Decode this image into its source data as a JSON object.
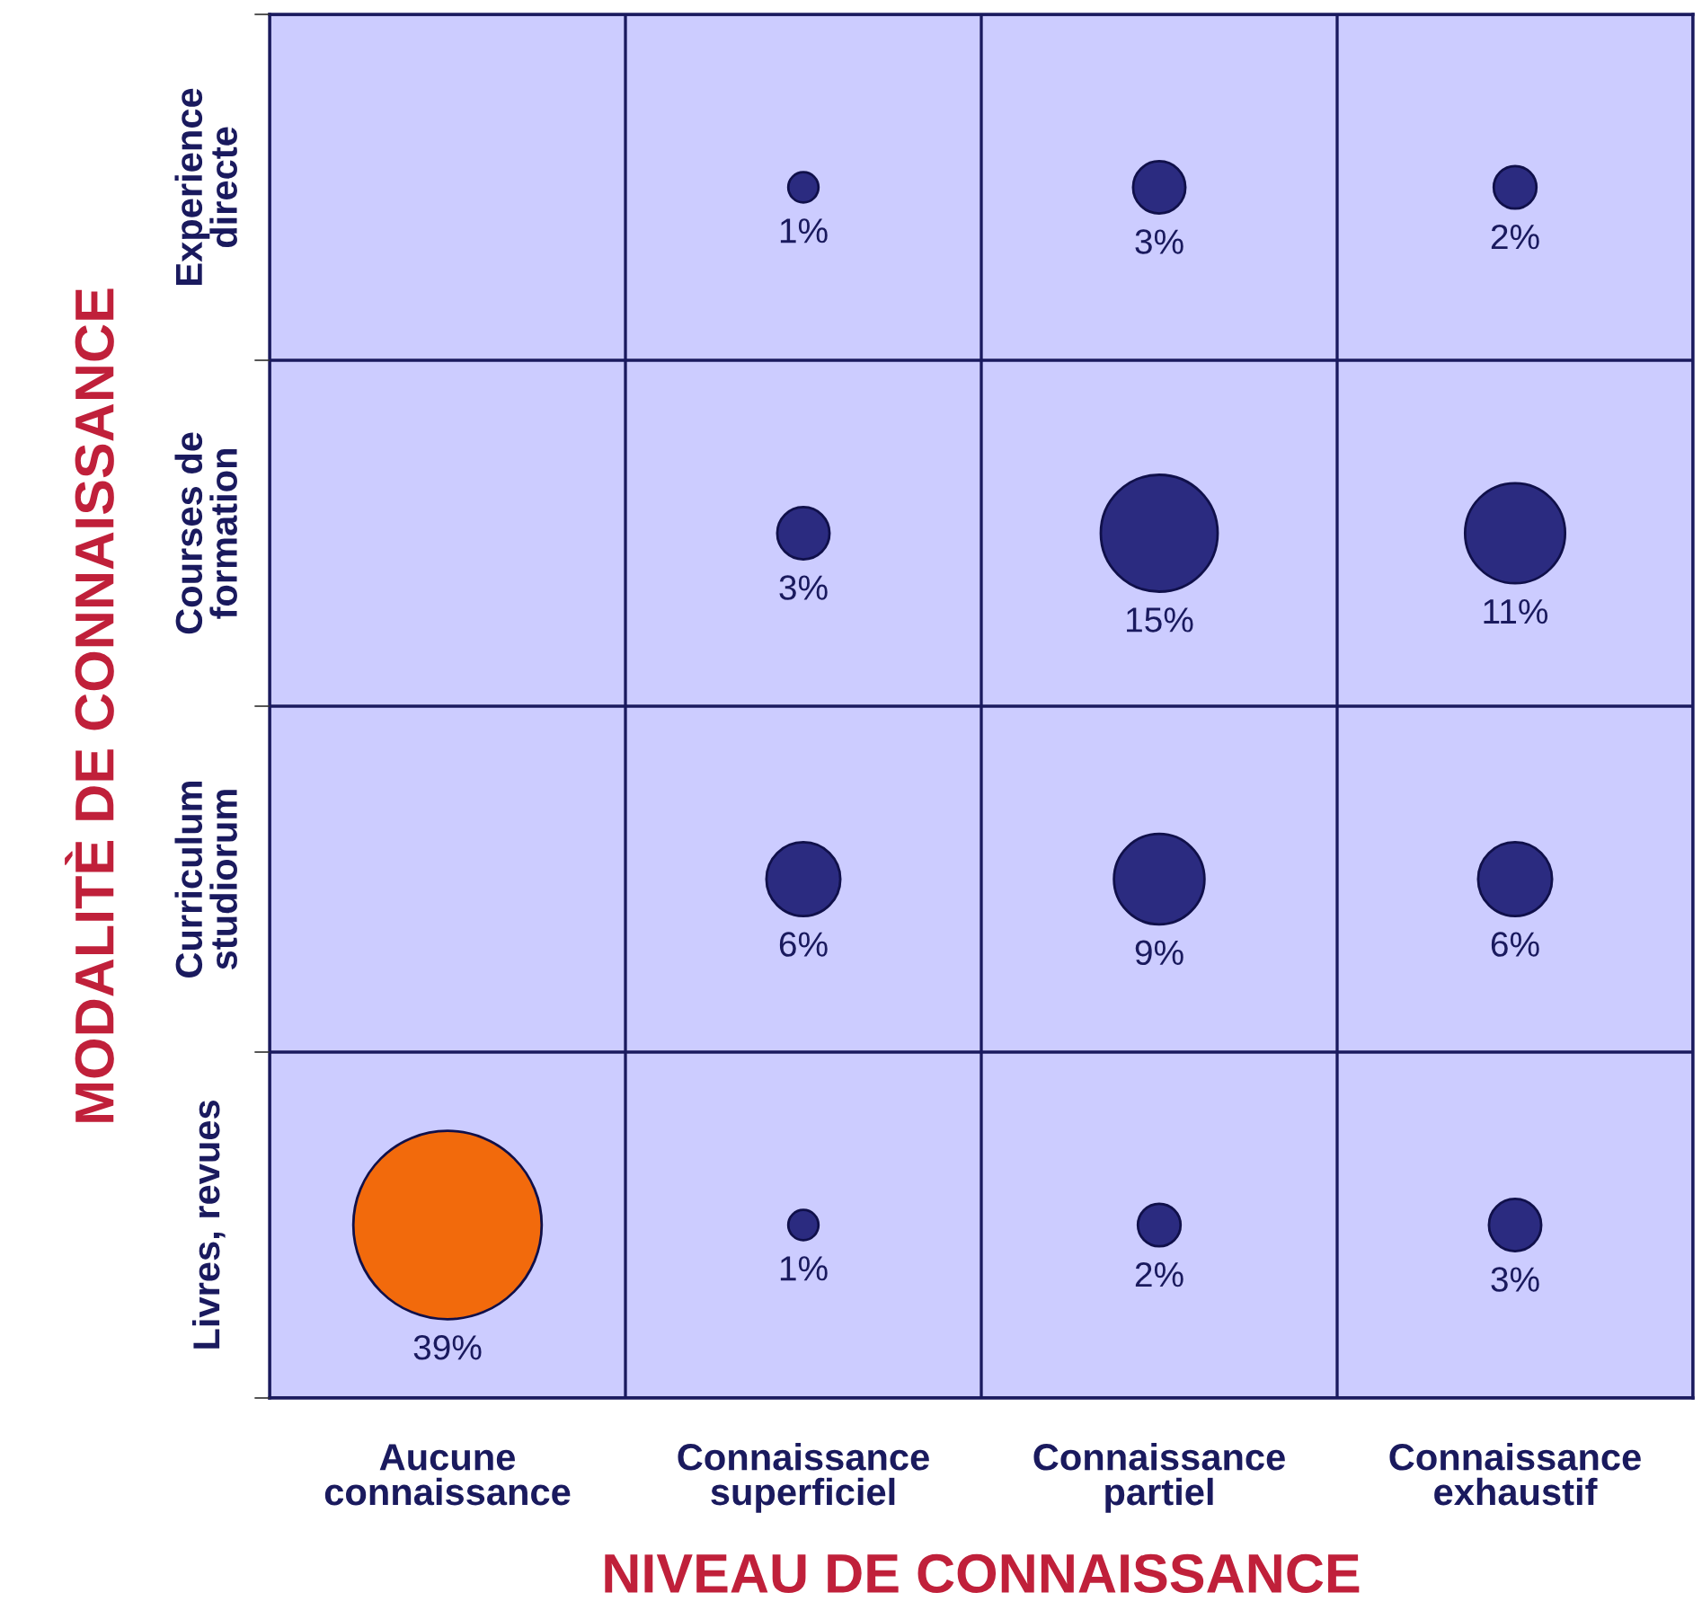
{
  "chart_data": {
    "type": "heatmap",
    "xlabel": "NIVEAU DE CONNAISSANCE",
    "ylabel": "MODALITÈ DE CONNAISSANCE",
    "categories": [
      "Aucune\nconnaissance",
      "Connaissance\nsuperficiel",
      "Connaissance\npartiel",
      "Connaissance\nexhaustif"
    ],
    "y_categories": [
      "Experience\ndirecte",
      "Courses de\nformation",
      "Curriculum\nstudiorum",
      "Livres, revues"
    ],
    "cells": [
      [
        null,
        1,
        3,
        2
      ],
      [
        null,
        3,
        15,
        11
      ],
      [
        null,
        6,
        9,
        6
      ],
      [
        39,
        1,
        2,
        3
      ]
    ],
    "cell_labels": [
      [
        null,
        "1%",
        "3%",
        "2%"
      ],
      [
        null,
        "3%",
        "15%",
        "11%"
      ],
      [
        null,
        "6%",
        "9%",
        "6%"
      ],
      [
        "39%",
        "1%",
        "2%",
        "3%"
      ]
    ],
    "colors": [
      [
        null,
        "#2b2b80",
        "#2b2b80",
        "#2b2b80"
      ],
      [
        null,
        "#2b2b80",
        "#2b2b80",
        "#2b2b80"
      ],
      [
        null,
        "#2b2b80",
        "#2b2b80",
        "#2b2b80"
      ],
      [
        "#f26a0c",
        "#2b2b80",
        "#2b2b80",
        "#2b2b80"
      ]
    ],
    "grid": true
  }
}
